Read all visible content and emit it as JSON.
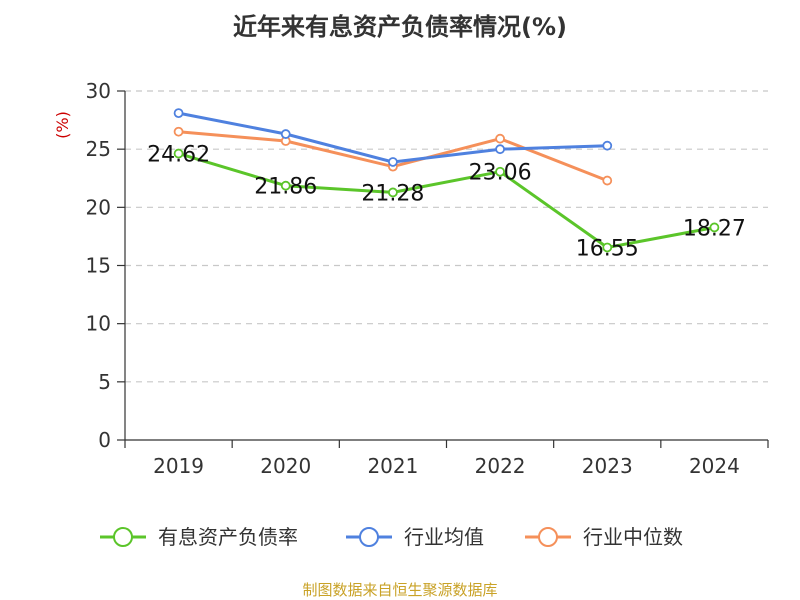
{
  "chart_data": {
    "type": "line",
    "title": "近年来有息资产负债率情况(%)",
    "ylabel": "(%)",
    "categories": [
      "2019",
      "2020",
      "2021",
      "2022",
      "2023",
      "2024"
    ],
    "ylim": [
      0,
      30
    ],
    "yticks": [
      "0",
      "5",
      "10",
      "15",
      "20",
      "25",
      "30"
    ],
    "grid": true,
    "legend_position": "bottom",
    "series": [
      {
        "name": "有息资产负债率",
        "color": "#5bc52a",
        "values": [
          24.62,
          21.86,
          21.28,
          23.06,
          16.55,
          18.27
        ],
        "labels": [
          "24.62",
          "21.86",
          "21.28",
          "23.06",
          "16.55",
          "18.27"
        ]
      },
      {
        "name": "行业均值",
        "color": "#4f81df",
        "values": [
          28.1,
          26.3,
          23.9,
          25.0,
          25.3,
          null
        ]
      },
      {
        "name": "行业中位数",
        "color": "#f5905a",
        "values": [
          26.5,
          25.7,
          23.5,
          25.9,
          22.3,
          null
        ]
      }
    ],
    "source": "制图数据来自恒生聚源数据库"
  }
}
